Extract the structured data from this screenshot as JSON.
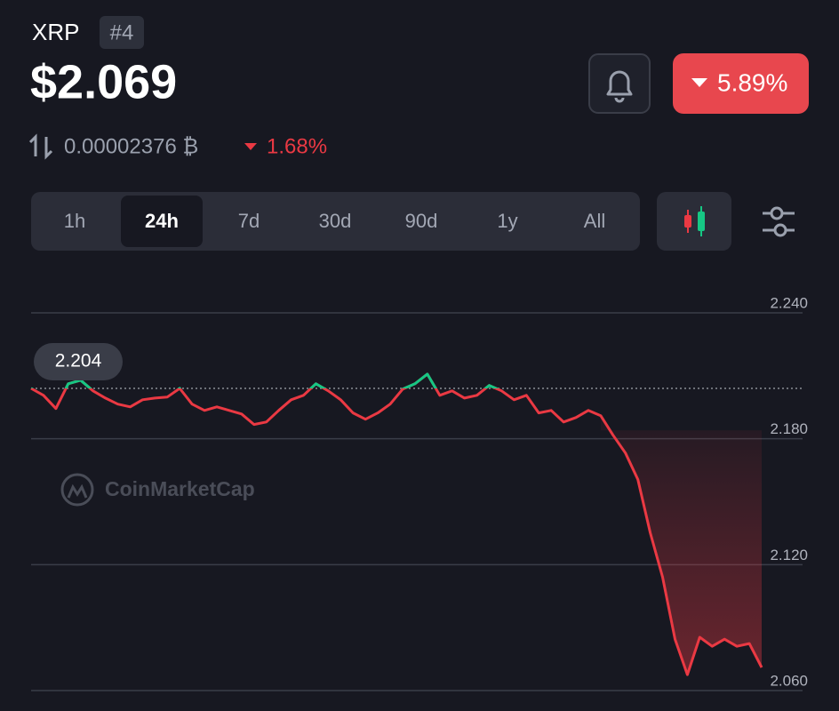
{
  "header": {
    "symbol": "XRP",
    "rank": "#4",
    "price": "$2.069",
    "btc_price": "0.00002376 ₿",
    "btc_change": "1.68%",
    "change": "5.89%"
  },
  "tabs": [
    "1h",
    "24h",
    "7d",
    "30d",
    "90d",
    "1y",
    "All"
  ],
  "active_tab": "24h",
  "watermark": "CoinMarketCap",
  "chart_data": {
    "type": "line",
    "color": "#ea3943",
    "up_color": "#16c784",
    "ylim": [
      2.06,
      2.24
    ],
    "yticks": [
      {
        "value": 2.24,
        "label": "2.240"
      },
      {
        "value": 2.18,
        "label": "2.180"
      },
      {
        "value": 2.12,
        "label": "2.120"
      },
      {
        "value": 2.06,
        "label": "2.060"
      }
    ],
    "grid": true,
    "reference": {
      "value": 2.204,
      "label": "2.204"
    },
    "values": [
      2.204,
      2.2007,
      2.1944,
      2.2062,
      2.2079,
      2.2028,
      2.1994,
      2.1965,
      2.1952,
      2.1986,
      2.1994,
      2.1999,
      2.204,
      2.1965,
      2.1935,
      2.1952,
      2.1935,
      2.1918,
      2.1868,
      2.188,
      2.1935,
      2.1986,
      2.2007,
      2.2062,
      2.2028,
      2.1986,
      2.1923,
      2.1893,
      2.1923,
      2.1965,
      2.2036,
      2.2062,
      2.2108,
      2.2007,
      2.2028,
      2.1994,
      2.2007,
      2.2054,
      2.2028,
      2.1986,
      2.2007,
      2.1923,
      2.1935,
      2.188,
      2.1901,
      2.1935,
      2.191,
      2.1817,
      2.1732,
      2.1606,
      2.1352,
      2.1141,
      2.0845,
      2.0676,
      2.0854,
      2.0811,
      2.0845,
      2.0811,
      2.0824,
      2.071
    ]
  }
}
